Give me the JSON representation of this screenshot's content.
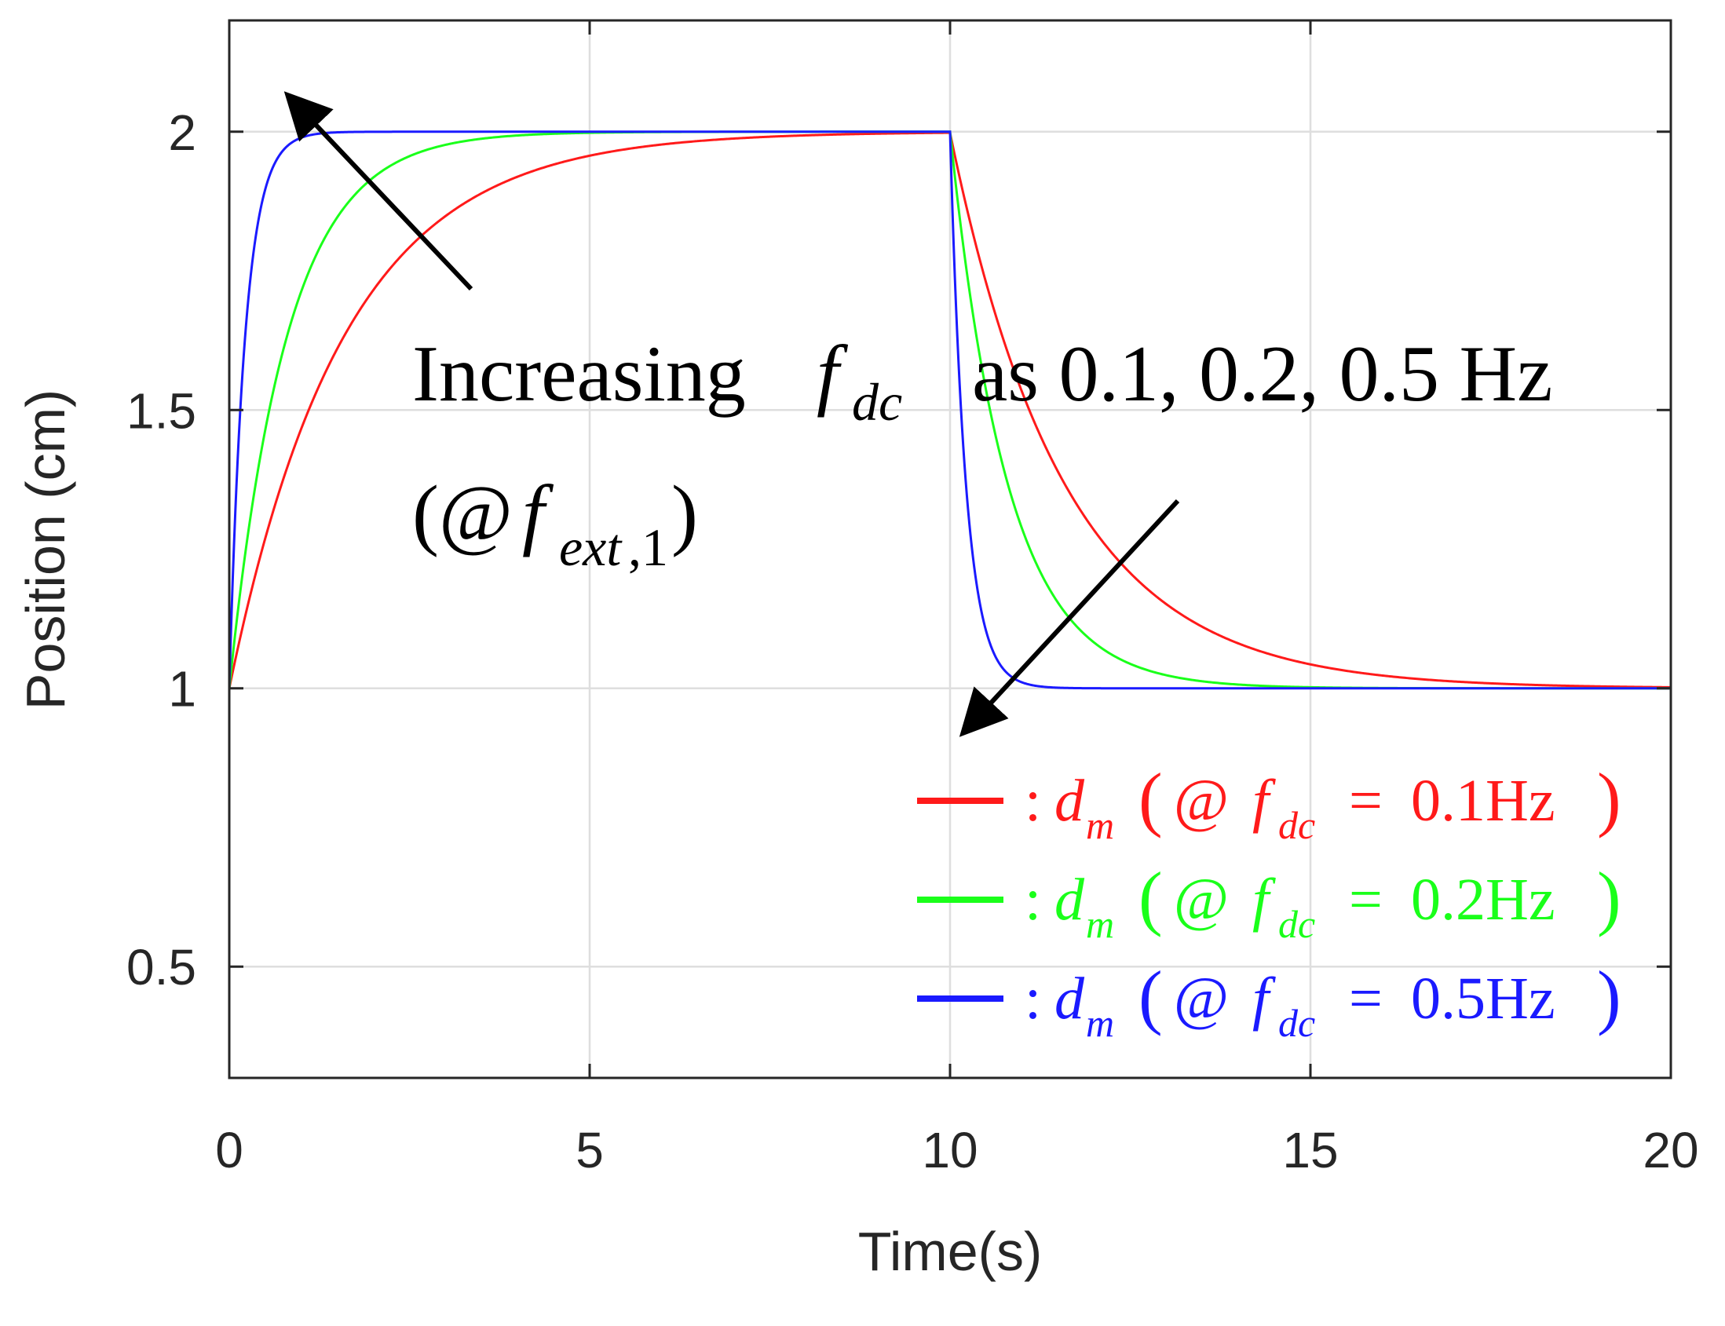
{
  "chart_data": {
    "type": "line",
    "xlabel": "Time(s)",
    "ylabel": "Position (cm)",
    "xlim": [
      0,
      20
    ],
    "ylim": [
      0.3,
      2.2
    ],
    "x_ticks": [
      0,
      5,
      10,
      15,
      20
    ],
    "x_tick_labels": [
      "0",
      "5",
      "10",
      "15",
      "20"
    ],
    "y_ticks": [
      0.5,
      1,
      1.5,
      2
    ],
    "y_tick_labels": [
      "0.5",
      "1",
      "1.5",
      "2"
    ],
    "grid": true,
    "step": {
      "t_up": 0,
      "t_down": 10,
      "low": 1,
      "high": 2
    },
    "series": [
      {
        "name": "d_m (@ f_dc = 0.1Hz)",
        "f_dc_hz": 0.1,
        "tau_s": 1.59,
        "color": "#ff1a1a"
      },
      {
        "name": "d_m (@ f_dc = 0.2Hz)",
        "f_dc_hz": 0.2,
        "tau_s": 0.8,
        "color": "#1aff1a"
      },
      {
        "name": "d_m (@ f_dc = 0.5Hz)",
        "f_dc_hz": 0.5,
        "tau_s": 0.22,
        "color": "#1a1aff"
      }
    ],
    "annotation": {
      "line1_prefix": "Increasing",
      "f_symbol": "f",
      "f_sub": "dc",
      "line1_suffix": "as 0.1, 0.2, 0.5 Hz",
      "line2_open": "(@",
      "line2_f": "f",
      "line2_sub": "ext",
      "line2_subnum": ",1",
      "line2_close": ")"
    },
    "legend": {
      "position": "bottom-right",
      "entries": [
        {
          "colon": ":",
          "d": "d",
          "d_sub": "m",
          "open": "(",
          "at": "@",
          "f": "f",
          "f_sub": "dc",
          "eq": "=",
          "value": "0.1Hz",
          "close": ")"
        },
        {
          "colon": ":",
          "d": "d",
          "d_sub": "m",
          "open": "(",
          "at": "@",
          "f": "f",
          "f_sub": "dc",
          "eq": "=",
          "value": "0.2Hz",
          "close": ")"
        },
        {
          "colon": ":",
          "d": "d",
          "d_sub": "m",
          "open": "(",
          "at": "@",
          "f": "f",
          "f_sub": "dc",
          "eq": "=",
          "value": "0.5Hz",
          "close": ")"
        }
      ]
    }
  }
}
